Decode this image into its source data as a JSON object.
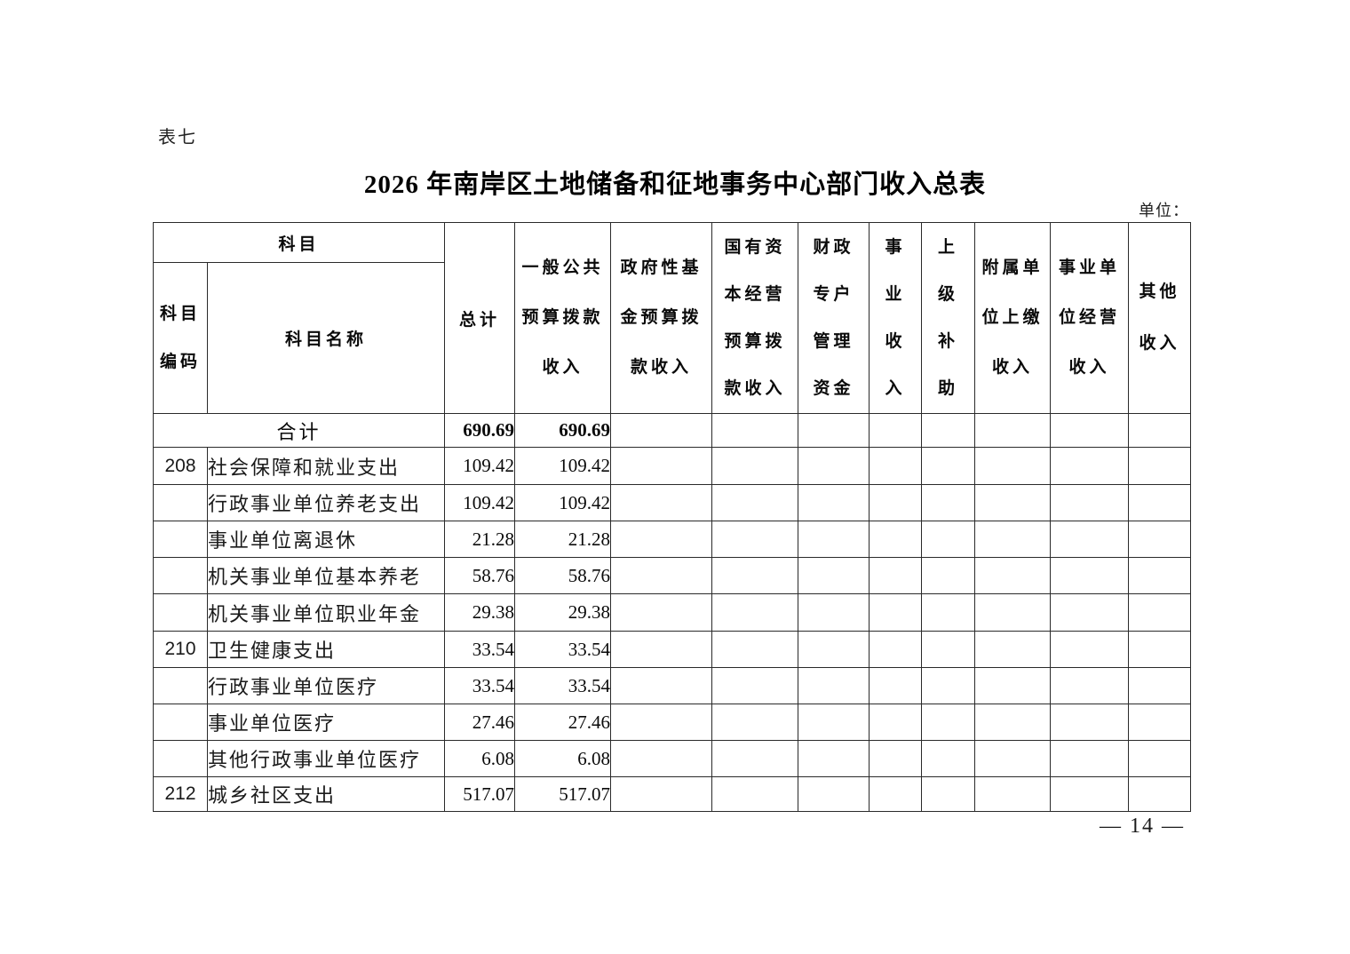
{
  "page": {
    "table_label": "表七",
    "title": "2026 年南岸区土地储备和征地事务中心部门收入总表",
    "unit_label": "单位：",
    "page_number": "— 14 —"
  },
  "table": {
    "header": {
      "subject_group": "科目",
      "subject_code": "科目\n编码",
      "subject_name": "科目名称",
      "columns": [
        {
          "label": "总计"
        },
        {
          "label": "一般公共\n预算拨款\n收入"
        },
        {
          "label": "政府性基\n金预算拨\n款收入"
        },
        {
          "label": "国有资\n本经营\n预算拨\n款收入"
        },
        {
          "label": "财政\n专户\n管理\n资金"
        },
        {
          "label": "事\n业\n收\n入"
        },
        {
          "label": "上\n级\n补\n助"
        },
        {
          "label": "附属单\n位上缴\n收入"
        },
        {
          "label": "事业单\n位经营\n收入"
        },
        {
          "label": "其他\n收入"
        }
      ]
    },
    "summary_row": {
      "name": "合计",
      "total": "690.69",
      "general_public_budget": "690.69"
    },
    "rows": [
      {
        "code": "208",
        "name": "社会保障和就业支出",
        "total": "109.42",
        "general_public_budget": "109.42"
      },
      {
        "code": "",
        "name": "行政事业单位养老支出",
        "total": "109.42",
        "general_public_budget": "109.42"
      },
      {
        "code": "",
        "name": "事业单位离退休",
        "total": "21.28",
        "general_public_budget": "21.28"
      },
      {
        "code": "",
        "name": "机关事业单位基本养老",
        "total": "58.76",
        "general_public_budget": "58.76"
      },
      {
        "code": "",
        "name": "机关事业单位职业年金",
        "total": "29.38",
        "general_public_budget": "29.38"
      },
      {
        "code": "210",
        "name": "卫生健康支出",
        "total": "33.54",
        "general_public_budget": "33.54"
      },
      {
        "code": "",
        "name": "行政事业单位医疗",
        "total": "33.54",
        "general_public_budget": "33.54"
      },
      {
        "code": "",
        "name": "事业单位医疗",
        "total": "27.46",
        "general_public_budget": "27.46"
      },
      {
        "code": "",
        "name": "其他行政事业单位医疗",
        "total": "6.08",
        "general_public_budget": "6.08"
      },
      {
        "code": "212",
        "name": "城乡社区支出",
        "total": "517.07",
        "general_public_budget": "517.07"
      }
    ]
  }
}
